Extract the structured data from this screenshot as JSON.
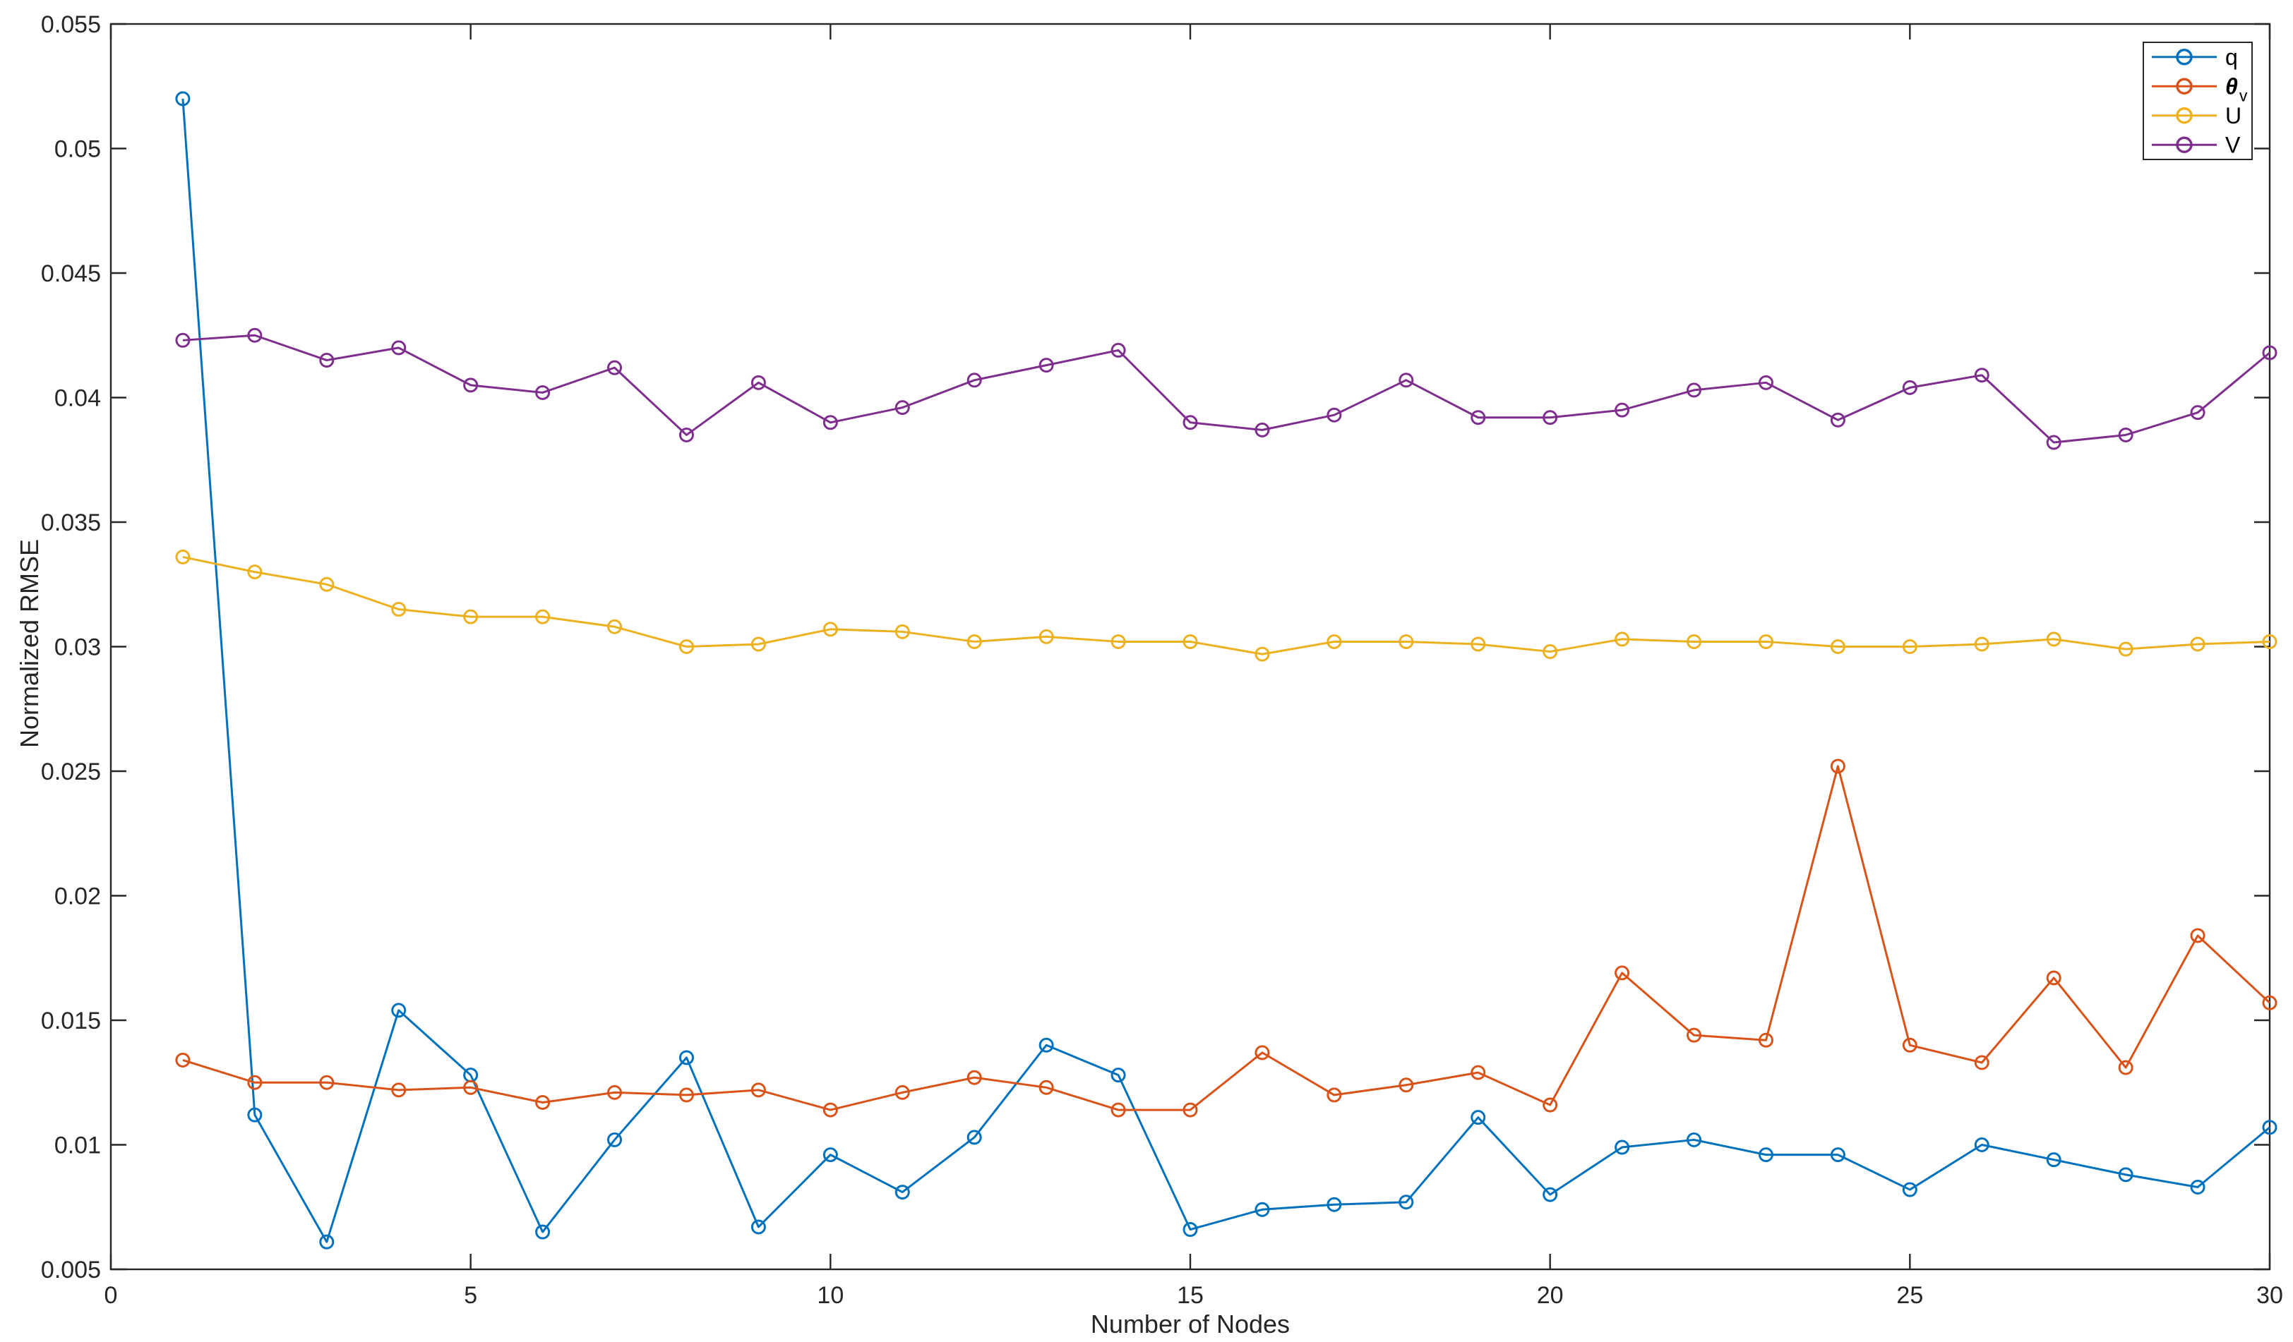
{
  "figure": {
    "background": "#ffffff",
    "axis_color": "#262626",
    "tick_label_fontsize": 34,
    "axis_label_fontsize": 36,
    "legend_fontsize": 32
  },
  "chart_data": {
    "type": "line",
    "title": "",
    "xlabel": "Number of Nodes",
    "ylabel": "Normalized RMSE",
    "xlim": [
      0,
      30
    ],
    "ylim": [
      0.005,
      0.055
    ],
    "grid": false,
    "box": true,
    "legend_position": "top-right",
    "x_ticks": [
      0,
      5,
      10,
      15,
      20,
      25,
      30
    ],
    "x_tick_labels": [
      "0",
      "5",
      "10",
      "15",
      "20",
      "25",
      "30"
    ],
    "y_ticks": [
      0.005,
      0.01,
      0.015,
      0.02,
      0.025,
      0.03,
      0.035,
      0.04,
      0.045,
      0.05,
      0.055
    ],
    "y_tick_labels": [
      "0.005",
      "0.01",
      "0.015",
      "0.02",
      "0.025",
      "0.03",
      "0.035",
      "0.04",
      "0.045",
      "0.05",
      "0.055"
    ],
    "x": [
      1,
      2,
      3,
      4,
      5,
      6,
      7,
      8,
      9,
      10,
      11,
      12,
      13,
      14,
      15,
      16,
      17,
      18,
      19,
      20,
      21,
      22,
      23,
      24,
      25,
      26,
      27,
      28,
      29,
      30
    ],
    "series": [
      {
        "name": "q",
        "subscript": "",
        "italic": false,
        "color": "#0072BD",
        "marker": "circle",
        "values": [
          0.052,
          0.0112,
          0.0061,
          0.0154,
          0.0128,
          0.0065,
          0.0102,
          0.0135,
          0.0067,
          0.0096,
          0.0081,
          0.0103,
          0.014,
          0.0128,
          0.0066,
          0.0074,
          0.0076,
          0.0077,
          0.0111,
          0.008,
          0.0099,
          0.0102,
          0.0096,
          0.0096,
          0.0082,
          0.01,
          0.0094,
          0.0088,
          0.0083,
          0.0107
        ]
      },
      {
        "name": "θ",
        "subscript": "v",
        "italic": true,
        "color": "#D95319",
        "marker": "circle",
        "values": [
          0.0134,
          0.0125,
          0.0125,
          0.0122,
          0.0123,
          0.0117,
          0.0121,
          0.012,
          0.0122,
          0.0114,
          0.0121,
          0.0127,
          0.0123,
          0.0114,
          0.0114,
          0.0137,
          0.012,
          0.0124,
          0.0129,
          0.0116,
          0.0169,
          0.0144,
          0.0142,
          0.0252,
          0.014,
          0.0133,
          0.0167,
          0.0131,
          0.0184,
          0.0157
        ]
      },
      {
        "name": "U",
        "subscript": "",
        "italic": false,
        "color": "#EDB120",
        "marker": "circle",
        "values": [
          0.0336,
          0.033,
          0.0325,
          0.0315,
          0.0312,
          0.0312,
          0.0308,
          0.03,
          0.0301,
          0.0307,
          0.0306,
          0.0302,
          0.0304,
          0.0302,
          0.0302,
          0.0297,
          0.0302,
          0.0302,
          0.0301,
          0.0298,
          0.0303,
          0.0302,
          0.0302,
          0.03,
          0.03,
          0.0301,
          0.0303,
          0.0299,
          0.0301,
          0.0302
        ]
      },
      {
        "name": "V",
        "subscript": "",
        "italic": false,
        "color": "#7E2F8E",
        "marker": "circle",
        "values": [
          0.0423,
          0.0425,
          0.0415,
          0.042,
          0.0405,
          0.0402,
          0.0412,
          0.0385,
          0.0406,
          0.039,
          0.0396,
          0.0407,
          0.0413,
          0.0419,
          0.039,
          0.0387,
          0.0393,
          0.0407,
          0.0392,
          0.0392,
          0.0395,
          0.0403,
          0.0406,
          0.0391,
          0.0404,
          0.0409,
          0.0382,
          0.0385,
          0.0394,
          0.0418
        ]
      }
    ]
  }
}
